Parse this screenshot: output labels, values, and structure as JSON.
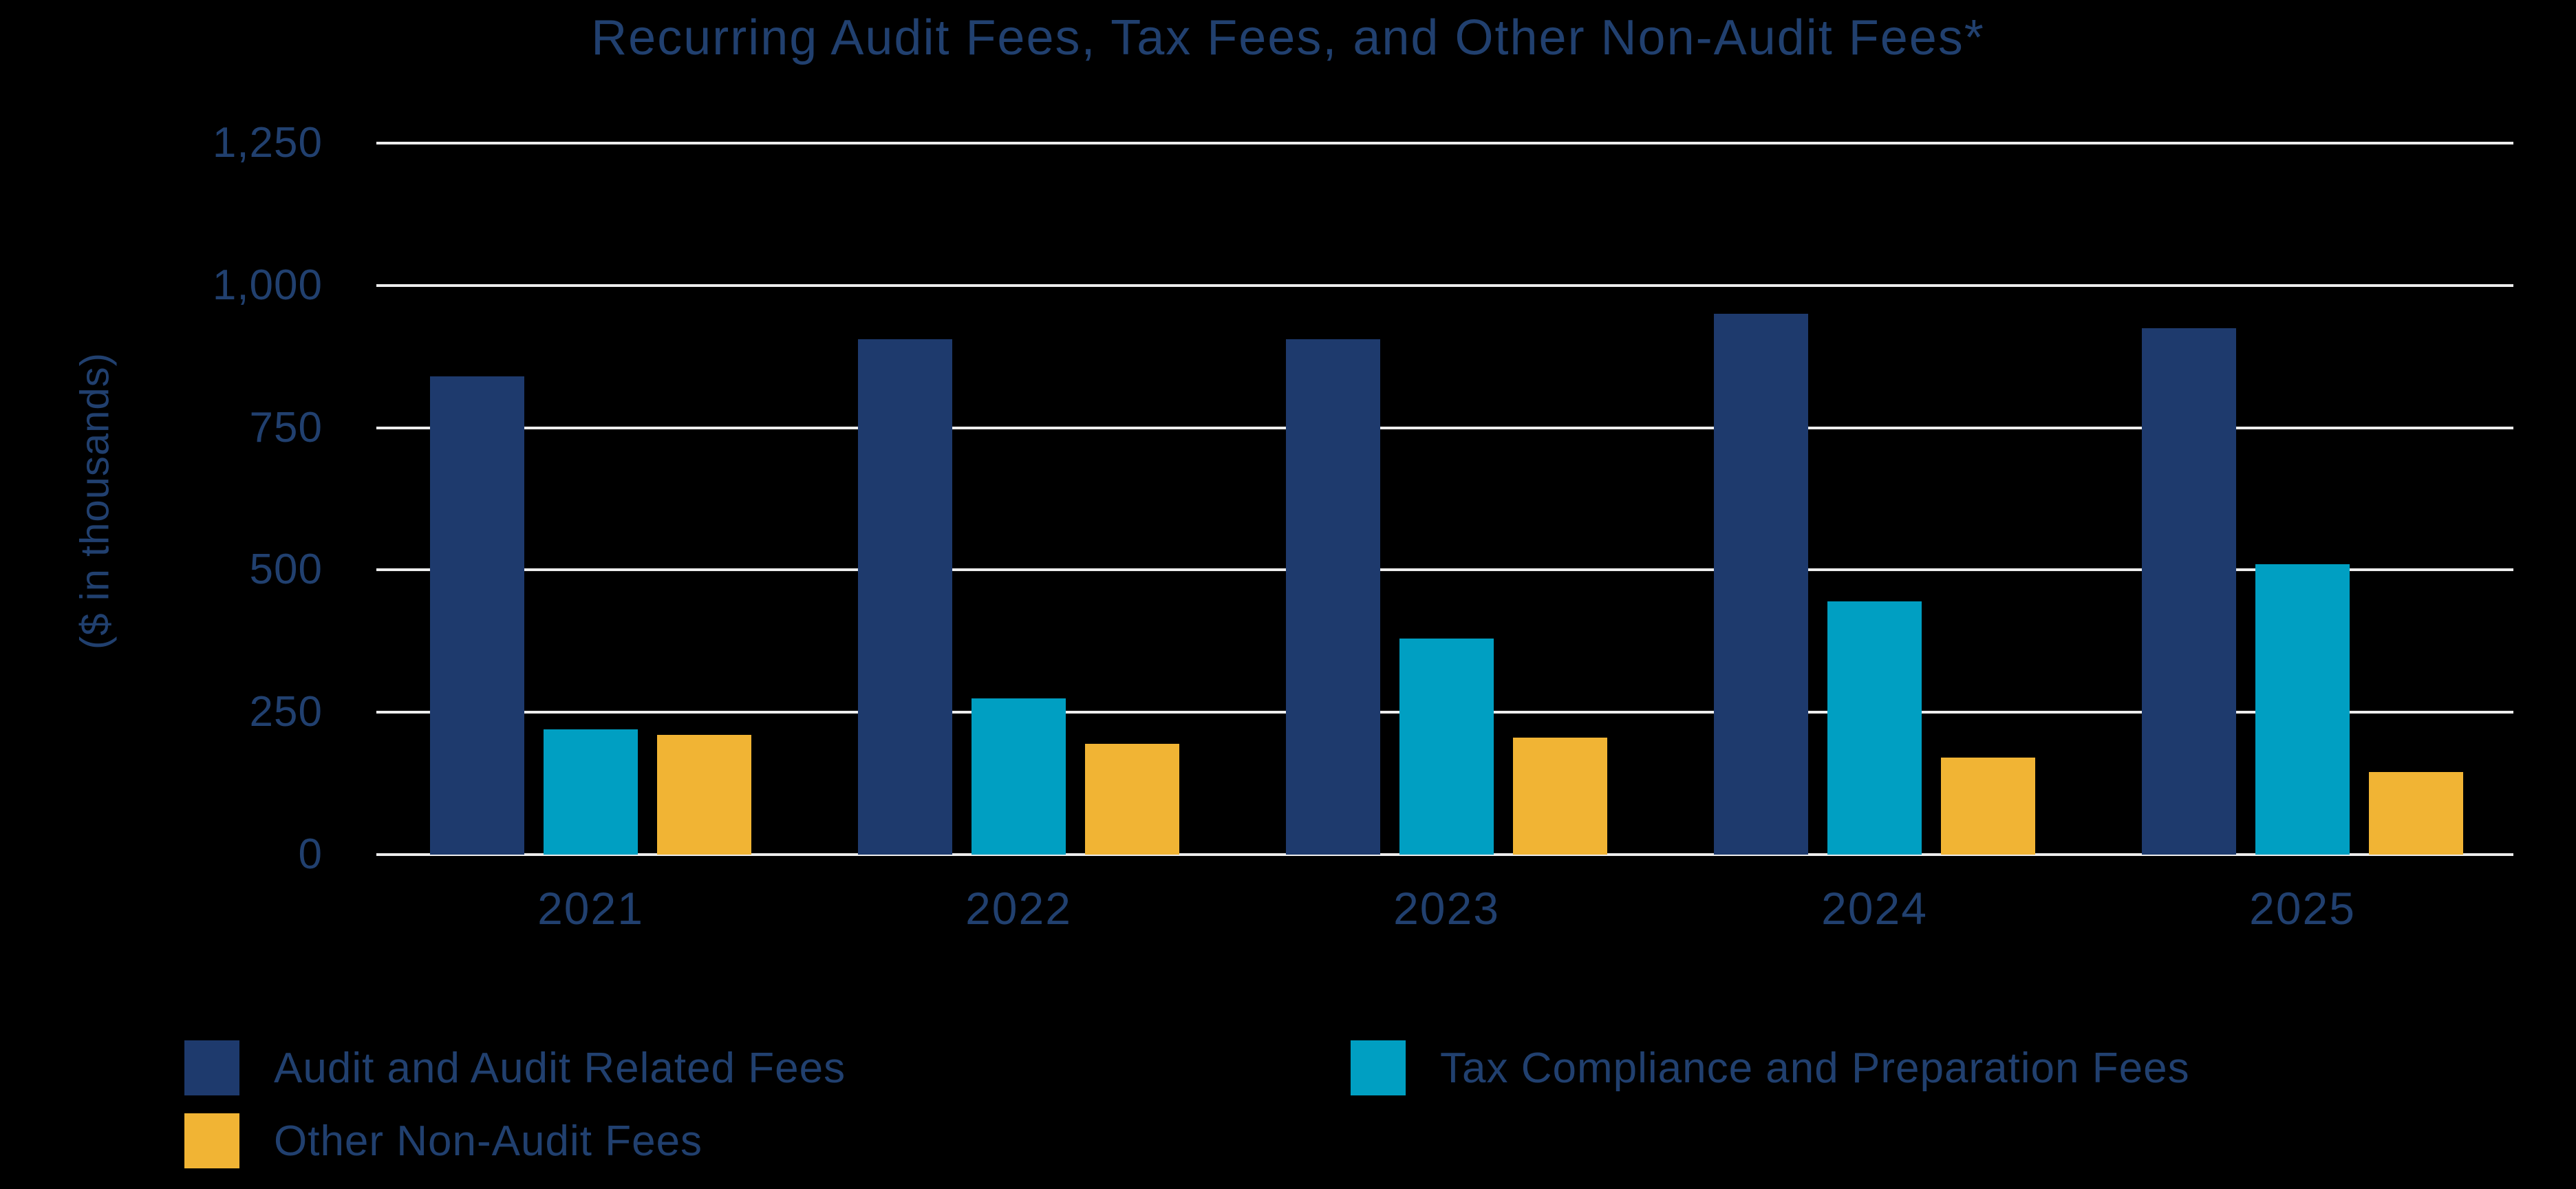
{
  "title": "Recurring Audit Fees, Tax Fees, and Other Non-Audit Fees*",
  "y_axis_label": "($ in thousands)",
  "colors": {
    "background": "#000000",
    "text": "#21406F",
    "grid": "#EDEDED",
    "audit_navy": "#1E3A6D",
    "tax_teal": "#009FC2",
    "other_gold": "#F1B434"
  },
  "chart_data": {
    "type": "bar",
    "title": "Recurring Audit Fees, Tax Fees, and Other Non-Audit Fees*",
    "xlabel": "",
    "ylabel": "($ in thousands)",
    "categories": [
      "2021",
      "2022",
      "2023",
      "2024",
      "2025"
    ],
    "series": [
      {
        "name": "Audit and Audit Related Fees",
        "color": "#1E3A6D",
        "values": [
          840,
          905,
          905,
          950,
          925
        ]
      },
      {
        "name": "Tax Compliance and Preparation Fees",
        "color": "#009FC2",
        "values": [
          220,
          275,
          380,
          445,
          510
        ]
      },
      {
        "name": "Other Non-Audit Fees",
        "color": "#F1B434",
        "values": [
          210,
          195,
          205,
          170,
          145
        ]
      }
    ],
    "ylim": [
      0,
      1250
    ],
    "yticks": [
      0,
      250,
      500,
      750,
      1000,
      1250
    ],
    "ytick_labels": [
      "0",
      "250",
      "500",
      "750",
      "1,000",
      "1,250"
    ],
    "grid": true,
    "legend_position": "bottom"
  },
  "legend": {
    "items": [
      {
        "label": "Audit and Audit Related Fees",
        "color": "#1E3A6D"
      },
      {
        "label": "Tax Compliance and Preparation Fees",
        "color": "#009FC2"
      },
      {
        "label": "Other Non-Audit Fees",
        "color": "#F1B434"
      }
    ]
  }
}
